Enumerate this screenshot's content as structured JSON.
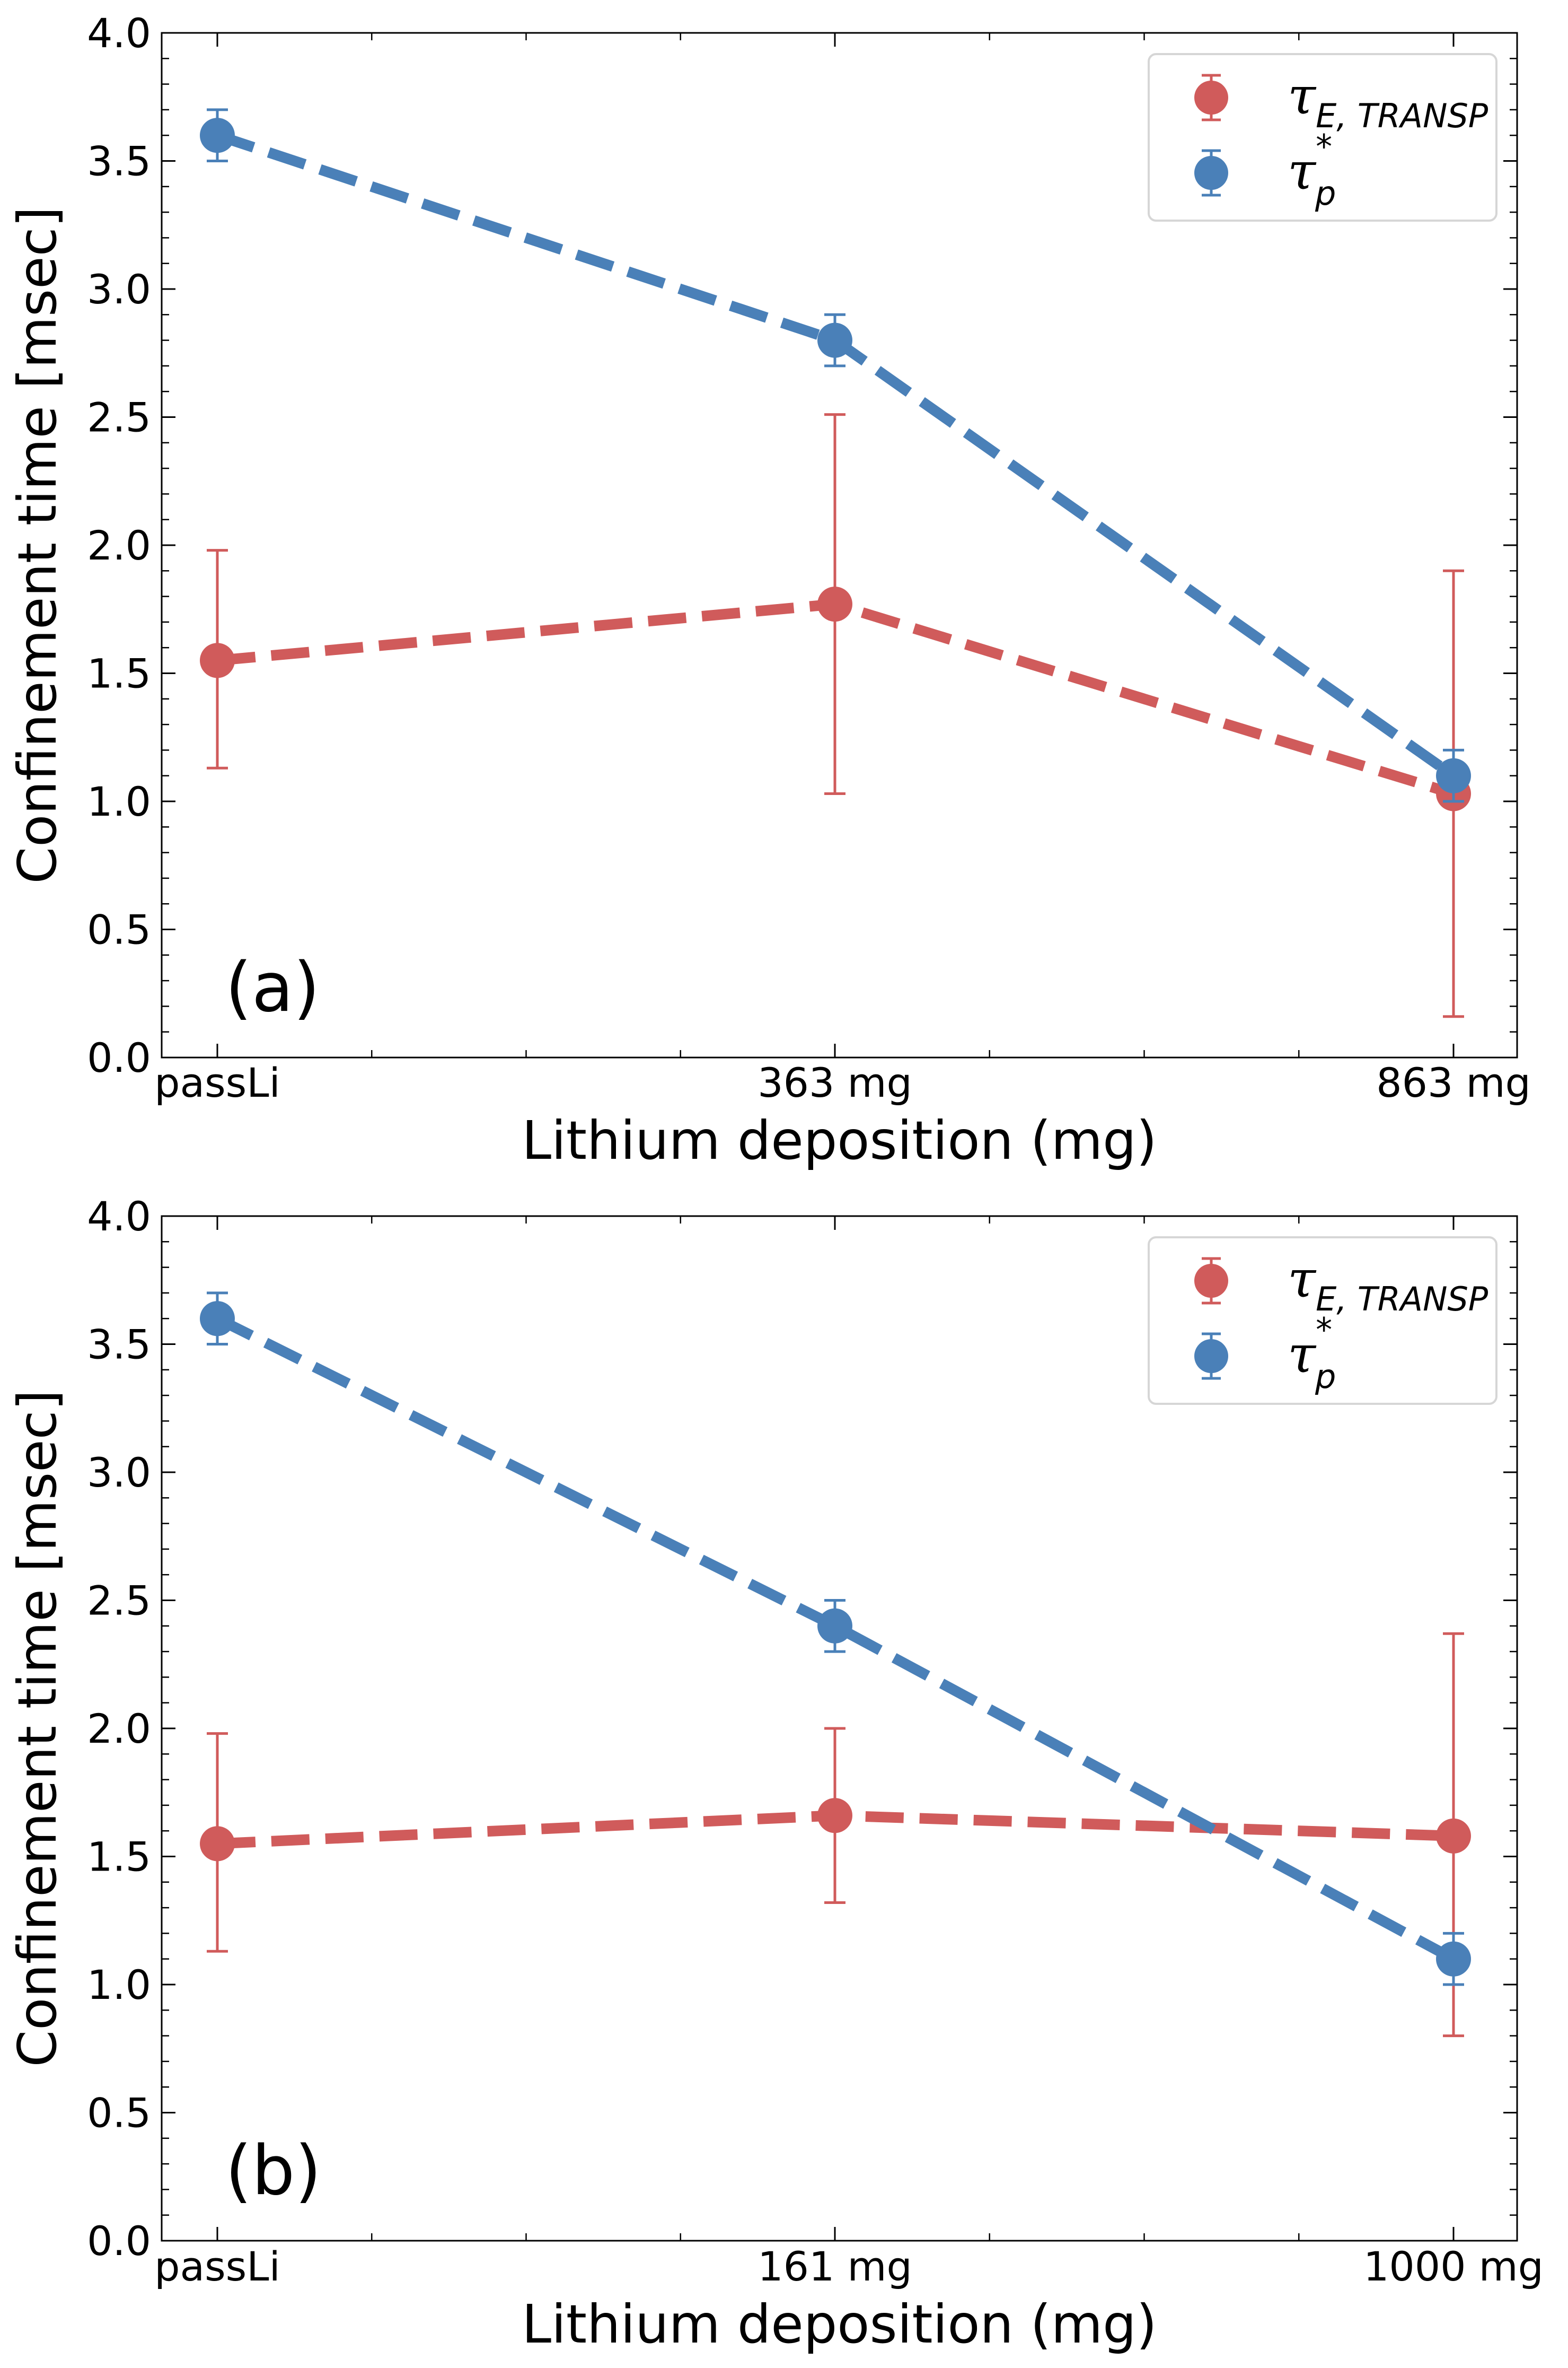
{
  "colors": {
    "tau_E": "#d05b5b",
    "tau_p": "#4a80b8"
  },
  "chart_data": [
    {
      "type": "line",
      "panel_label": "(a)",
      "categories": [
        "passLi",
        "363 mg",
        "863 mg"
      ],
      "xlabel": "Lithium deposition (mg)",
      "ylabel": "Confinement time [msec]",
      "ylim": [
        0,
        4.0
      ],
      "yticks": [
        "0.0",
        "0.5",
        "1.0",
        "1.5",
        "2.0",
        "2.5",
        "3.0",
        "3.5",
        "4.0"
      ],
      "grid": false,
      "legend_position": "top-right",
      "series": [
        {
          "name": "τ_{E,TRANSP}",
          "symbol": "τ",
          "subscript": "E, TRANSP",
          "superscript": "",
          "color": "#d05b5b",
          "values": [
            1.55,
            1.77,
            1.03
          ],
          "err_low": [
            1.13,
            1.03,
            0.16
          ],
          "err_high": [
            1.98,
            2.51,
            1.9
          ]
        },
        {
          "name": "τ_p^*",
          "symbol": "τ",
          "subscript": "p",
          "superscript": "*",
          "color": "#4a80b8",
          "values": [
            3.6,
            2.8,
            1.1
          ],
          "err_low": [
            3.5,
            2.7,
            1.0
          ],
          "err_high": [
            3.7,
            2.9,
            1.2
          ]
        }
      ]
    },
    {
      "type": "line",
      "panel_label": "(b)",
      "categories": [
        "passLi",
        "161 mg",
        "1000 mg"
      ],
      "xlabel": "Lithium deposition (mg)",
      "ylabel": "Confinement time [msec]",
      "ylim": [
        0,
        4.0
      ],
      "yticks": [
        "0.0",
        "0.5",
        "1.0",
        "1.5",
        "2.0",
        "2.5",
        "3.0",
        "3.5",
        "4.0"
      ],
      "grid": false,
      "legend_position": "top-right",
      "series": [
        {
          "name": "τ_{E,TRANSP}",
          "symbol": "τ",
          "subscript": "E, TRANSP",
          "superscript": "",
          "color": "#d05b5b",
          "values": [
            1.55,
            1.66,
            1.58
          ],
          "err_low": [
            1.13,
            1.32,
            0.8
          ],
          "err_high": [
            1.98,
            2.0,
            2.37
          ]
        },
        {
          "name": "τ_p^*",
          "symbol": "τ",
          "subscript": "p",
          "superscript": "*",
          "color": "#4a80b8",
          "values": [
            3.6,
            2.4,
            1.1
          ],
          "err_low": [
            3.5,
            2.3,
            1.0
          ],
          "err_high": [
            3.7,
            2.5,
            1.2
          ]
        }
      ]
    }
  ]
}
